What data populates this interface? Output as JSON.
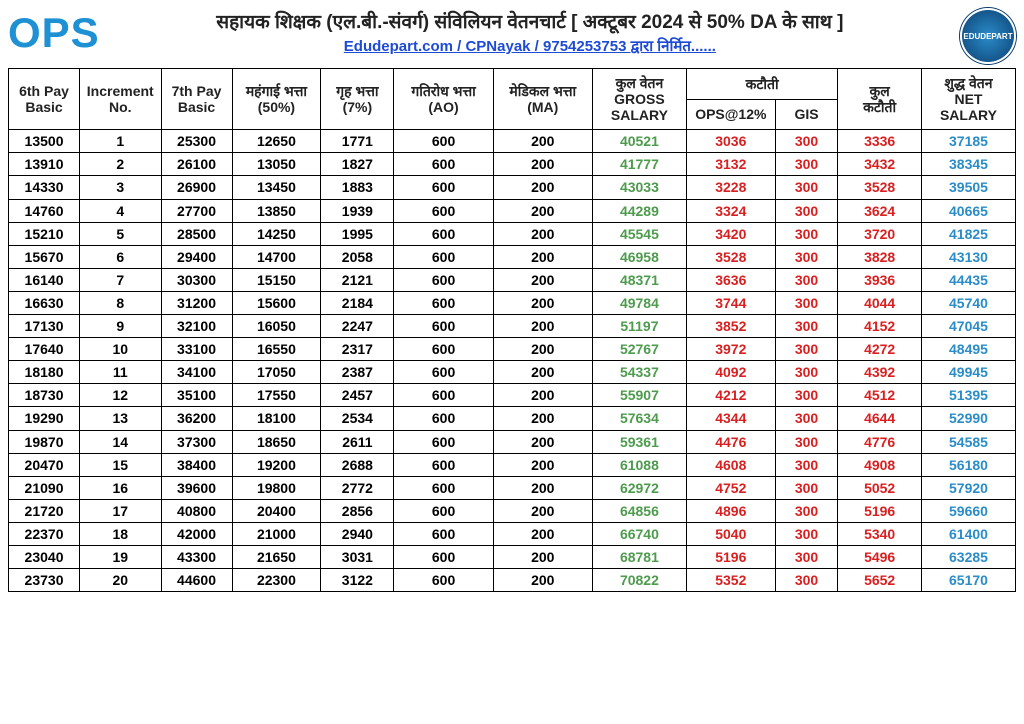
{
  "header": {
    "logo_left": "OPS",
    "title": "सहायक शिक्षक (एल.बी.-संवर्ग) संविलियन वेतनचार्ट [ अक्टूबर 2024 से 50% DA के साथ ]",
    "subtitle": "Edudepart.com / CPNayak / 9754253753 द्वारा निर्मित......",
    "logo_right": "EDUDEPART"
  },
  "columns": {
    "c0": "6th Pay Basic",
    "c1": "Increment No.",
    "c2": "7th Pay Basic",
    "c3": "महंगाई भत्ता (50%)",
    "c4": "गृह भत्ता (7%)",
    "c5": "गतिरोध भत्ता (AO)",
    "c6": "मेडिकल भत्ता (MA)",
    "c7_l1": "कुल वेतन",
    "c7_l2": "GROSS",
    "c7_l3": "SALARY",
    "deduct_group": "कटौती",
    "c8": "OPS@12%",
    "c9": "GIS",
    "c10_l1": "कुल",
    "c10_l2": "कटौती",
    "c11_l1": "शुद्ध वेतन",
    "c11_l2": "NET",
    "c11_l3": "SALARY"
  },
  "rows": [
    {
      "b6": "13500",
      "inc": "1",
      "b7": "25300",
      "da": "12650",
      "hra": "1771",
      "ao": "600",
      "ma": "200",
      "gross": "40521",
      "ops": "3036",
      "gis": "300",
      "tot": "3336",
      "net": "37185"
    },
    {
      "b6": "13910",
      "inc": "2",
      "b7": "26100",
      "da": "13050",
      "hra": "1827",
      "ao": "600",
      "ma": "200",
      "gross": "41777",
      "ops": "3132",
      "gis": "300",
      "tot": "3432",
      "net": "38345"
    },
    {
      "b6": "14330",
      "inc": "3",
      "b7": "26900",
      "da": "13450",
      "hra": "1883",
      "ao": "600",
      "ma": "200",
      "gross": "43033",
      "ops": "3228",
      "gis": "300",
      "tot": "3528",
      "net": "39505"
    },
    {
      "b6": "14760",
      "inc": "4",
      "b7": "27700",
      "da": "13850",
      "hra": "1939",
      "ao": "600",
      "ma": "200",
      "gross": "44289",
      "ops": "3324",
      "gis": "300",
      "tot": "3624",
      "net": "40665"
    },
    {
      "b6": "15210",
      "inc": "5",
      "b7": "28500",
      "da": "14250",
      "hra": "1995",
      "ao": "600",
      "ma": "200",
      "gross": "45545",
      "ops": "3420",
      "gis": "300",
      "tot": "3720",
      "net": "41825"
    },
    {
      "b6": "15670",
      "inc": "6",
      "b7": "29400",
      "da": "14700",
      "hra": "2058",
      "ao": "600",
      "ma": "200",
      "gross": "46958",
      "ops": "3528",
      "gis": "300",
      "tot": "3828",
      "net": "43130"
    },
    {
      "b6": "16140",
      "inc": "7",
      "b7": "30300",
      "da": "15150",
      "hra": "2121",
      "ao": "600",
      "ma": "200",
      "gross": "48371",
      "ops": "3636",
      "gis": "300",
      "tot": "3936",
      "net": "44435"
    },
    {
      "b6": "16630",
      "inc": "8",
      "b7": "31200",
      "da": "15600",
      "hra": "2184",
      "ao": "600",
      "ma": "200",
      "gross": "49784",
      "ops": "3744",
      "gis": "300",
      "tot": "4044",
      "net": "45740"
    },
    {
      "b6": "17130",
      "inc": "9",
      "b7": "32100",
      "da": "16050",
      "hra": "2247",
      "ao": "600",
      "ma": "200",
      "gross": "51197",
      "ops": "3852",
      "gis": "300",
      "tot": "4152",
      "net": "47045"
    },
    {
      "b6": "17640",
      "inc": "10",
      "b7": "33100",
      "da": "16550",
      "hra": "2317",
      "ao": "600",
      "ma": "200",
      "gross": "52767",
      "ops": "3972",
      "gis": "300",
      "tot": "4272",
      "net": "48495"
    },
    {
      "b6": "18180",
      "inc": "11",
      "b7": "34100",
      "da": "17050",
      "hra": "2387",
      "ao": "600",
      "ma": "200",
      "gross": "54337",
      "ops": "4092",
      "gis": "300",
      "tot": "4392",
      "net": "49945"
    },
    {
      "b6": "18730",
      "inc": "12",
      "b7": "35100",
      "da": "17550",
      "hra": "2457",
      "ao": "600",
      "ma": "200",
      "gross": "55907",
      "ops": "4212",
      "gis": "300",
      "tot": "4512",
      "net": "51395"
    },
    {
      "b6": "19290",
      "inc": "13",
      "b7": "36200",
      "da": "18100",
      "hra": "2534",
      "ao": "600",
      "ma": "200",
      "gross": "57634",
      "ops": "4344",
      "gis": "300",
      "tot": "4644",
      "net": "52990"
    },
    {
      "b6": "19870",
      "inc": "14",
      "b7": "37300",
      "da": "18650",
      "hra": "2611",
      "ao": "600",
      "ma": "200",
      "gross": "59361",
      "ops": "4476",
      "gis": "300",
      "tot": "4776",
      "net": "54585"
    },
    {
      "b6": "20470",
      "inc": "15",
      "b7": "38400",
      "da": "19200",
      "hra": "2688",
      "ao": "600",
      "ma": "200",
      "gross": "61088",
      "ops": "4608",
      "gis": "300",
      "tot": "4908",
      "net": "56180"
    },
    {
      "b6": "21090",
      "inc": "16",
      "b7": "39600",
      "da": "19800",
      "hra": "2772",
      "ao": "600",
      "ma": "200",
      "gross": "62972",
      "ops": "4752",
      "gis": "300",
      "tot": "5052",
      "net": "57920"
    },
    {
      "b6": "21720",
      "inc": "17",
      "b7": "40800",
      "da": "20400",
      "hra": "2856",
      "ao": "600",
      "ma": "200",
      "gross": "64856",
      "ops": "4896",
      "gis": "300",
      "tot": "5196",
      "net": "59660"
    },
    {
      "b6": "22370",
      "inc": "18",
      "b7": "42000",
      "da": "21000",
      "hra": "2940",
      "ao": "600",
      "ma": "200",
      "gross": "66740",
      "ops": "5040",
      "gis": "300",
      "tot": "5340",
      "net": "61400"
    },
    {
      "b6": "23040",
      "inc": "19",
      "b7": "43300",
      "da": "21650",
      "hra": "3031",
      "ao": "600",
      "ma": "200",
      "gross": "68781",
      "ops": "5196",
      "gis": "300",
      "tot": "5496",
      "net": "63285"
    },
    {
      "b6": "23730",
      "inc": "20",
      "b7": "44600",
      "da": "22300",
      "hra": "3122",
      "ao": "600",
      "ma": "200",
      "gross": "70822",
      "ops": "5352",
      "gis": "300",
      "tot": "5652",
      "net": "65170"
    }
  ],
  "styles": {
    "color_black": "#222222",
    "color_green": "#4d9b4d",
    "color_red": "#d91f1f",
    "color_blue": "#2a8cc9",
    "color_link": "#1e4bd6",
    "font_size_table": 14
  }
}
